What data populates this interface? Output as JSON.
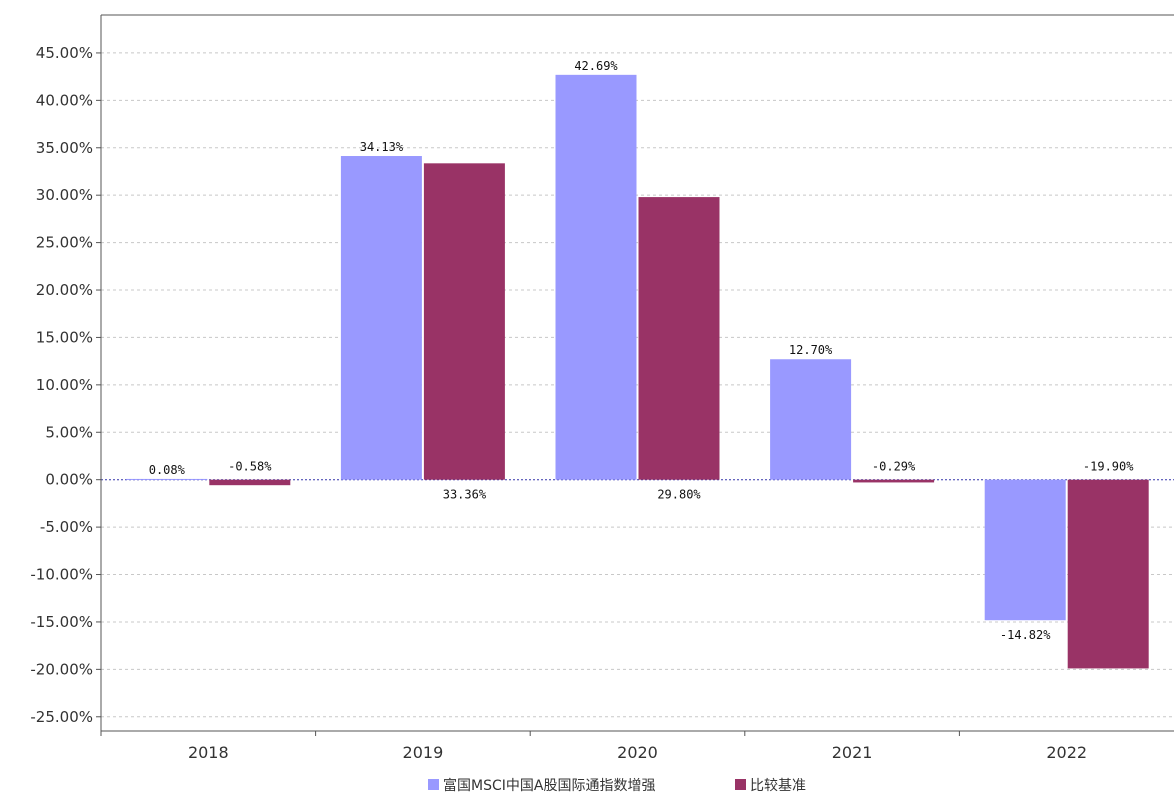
{
  "chart_data": {
    "type": "bar",
    "categories": [
      "2018",
      "2019",
      "2020",
      "2021",
      "2022"
    ],
    "series": [
      {
        "name": "富国MSCI中国A股国际通指数增强",
        "color": "#9999ff",
        "values": [
          0.08,
          34.13,
          42.69,
          12.7,
          -14.82
        ],
        "labels": [
          "0.08%",
          "34.13%",
          "42.69%",
          "12.70%",
          "-14.82%"
        ]
      },
      {
        "name": "比较基准",
        "color": "#993366",
        "values": [
          -0.58,
          33.36,
          29.8,
          -0.29,
          -19.9
        ],
        "labels": [
          "-0.58%",
          "33.36%",
          "29.80%",
          "-0.29%",
          "-19.90%"
        ]
      }
    ],
    "yticks": [
      "45.00%",
      "40.00%",
      "35.00%",
      "30.00%",
      "25.00%",
      "20.00%",
      "15.00%",
      "10.00%",
      "5.00%",
      "0.00%",
      "-5.00%",
      "-10.00%",
      "-15.00%",
      "-20.00%",
      "-25.00%"
    ],
    "ylim": [
      -26.5,
      49
    ],
    "grid": true,
    "legend_position": "bottom-center"
  }
}
